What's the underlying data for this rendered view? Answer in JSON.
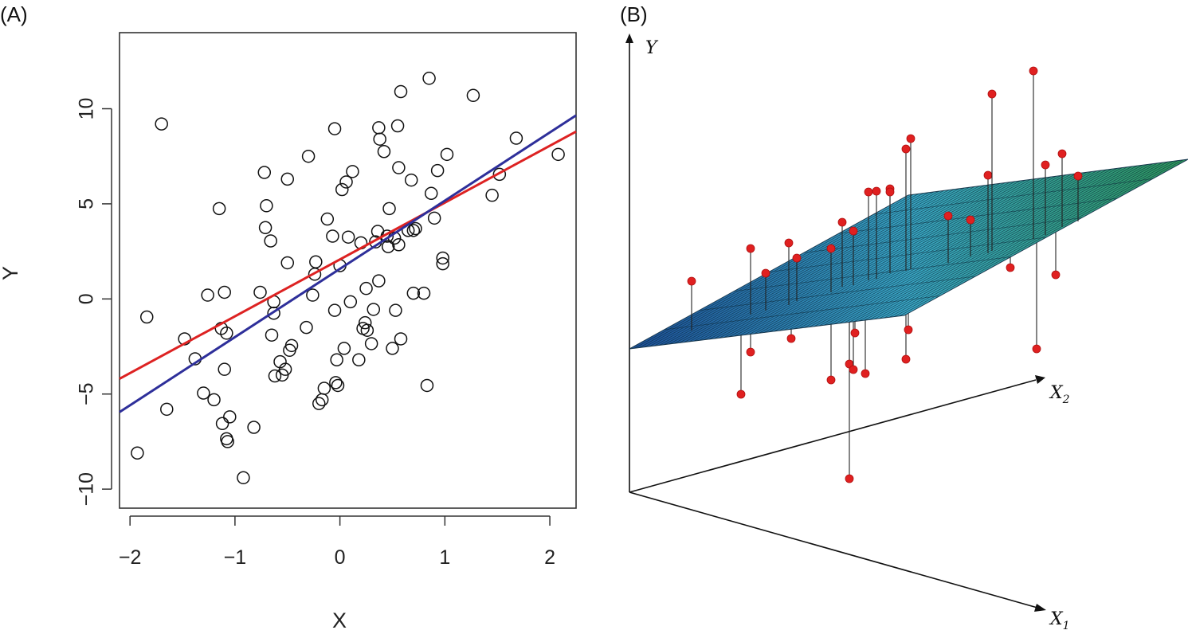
{
  "chart_data": [
    {
      "panel": "(A)",
      "type": "scatter",
      "xlabel": "X",
      "ylabel": "Y",
      "xlim": [
        -2.1,
        2.25
      ],
      "ylim": [
        -11,
        14
      ],
      "xticks": [
        -2,
        -1,
        0,
        1,
        2
      ],
      "yticks": [
        -10,
        -5,
        0,
        5,
        10
      ],
      "xtick_labels": [
        "−2",
        "−1",
        "0",
        "1",
        "2"
      ],
      "ytick_labels": [
        "−10",
        "−5",
        "0",
        "5",
        "10"
      ],
      "grid": false,
      "marker": "open-circle",
      "points": [
        [
          -1.93,
          -8.1
        ],
        [
          -1.84,
          -0.95
        ],
        [
          -1.7,
          9.2
        ],
        [
          -1.65,
          -5.8
        ],
        [
          -1.48,
          -2.1
        ],
        [
          -1.38,
          -3.15
        ],
        [
          -1.3,
          -4.95
        ],
        [
          -1.26,
          0.2
        ],
        [
          -1.2,
          -5.3
        ],
        [
          -1.15,
          4.75
        ],
        [
          -1.13,
          -1.55
        ],
        [
          -1.12,
          -6.55
        ],
        [
          -1.1,
          0.35
        ],
        [
          -1.1,
          -3.7
        ],
        [
          -1.08,
          -1.8
        ],
        [
          -1.08,
          -7.35
        ],
        [
          -1.07,
          -7.5
        ],
        [
          -1.05,
          -6.2
        ],
        [
          -0.92,
          -9.4
        ],
        [
          -0.82,
          -6.75
        ],
        [
          -0.76,
          0.35
        ],
        [
          -0.72,
          6.65
        ],
        [
          -0.71,
          3.75
        ],
        [
          -0.7,
          4.9
        ],
        [
          -0.66,
          3.05
        ],
        [
          -0.65,
          -1.9
        ],
        [
          -0.63,
          -0.15
        ],
        [
          -0.63,
          -0.75
        ],
        [
          -0.62,
          -4.05
        ],
        [
          -0.57,
          -3.3
        ],
        [
          -0.55,
          -4.0
        ],
        [
          -0.52,
          -3.7
        ],
        [
          -0.5,
          1.9
        ],
        [
          -0.5,
          6.3
        ],
        [
          -0.48,
          -2.7
        ],
        [
          -0.46,
          -2.45
        ],
        [
          -0.32,
          -1.5
        ],
        [
          -0.3,
          7.5
        ],
        [
          -0.26,
          0.2
        ],
        [
          -0.24,
          1.3
        ],
        [
          -0.23,
          1.95
        ],
        [
          -0.2,
          -5.5
        ],
        [
          -0.17,
          -5.3
        ],
        [
          -0.15,
          -4.7
        ],
        [
          -0.12,
          4.2
        ],
        [
          -0.07,
          3.3
        ],
        [
          -0.05,
          -0.6
        ],
        [
          -0.05,
          8.95
        ],
        [
          -0.04,
          -4.4
        ],
        [
          -0.03,
          -3.2
        ],
        [
          -0.02,
          -4.55
        ],
        [
          0.0,
          1.75
        ],
        [
          0.02,
          5.75
        ],
        [
          0.04,
          -2.6
        ],
        [
          0.06,
          6.15
        ],
        [
          0.08,
          3.25
        ],
        [
          0.1,
          -0.15
        ],
        [
          0.12,
          6.7
        ],
        [
          0.18,
          -3.2
        ],
        [
          0.2,
          2.95
        ],
        [
          0.22,
          -1.55
        ],
        [
          0.24,
          -1.25
        ],
        [
          0.25,
          0.55
        ],
        [
          0.26,
          -1.65
        ],
        [
          0.3,
          -2.35
        ],
        [
          0.32,
          -0.55
        ],
        [
          0.34,
          3.0
        ],
        [
          0.36,
          3.55
        ],
        [
          0.37,
          0.95
        ],
        [
          0.37,
          9.0
        ],
        [
          0.38,
          8.4
        ],
        [
          0.42,
          7.75
        ],
        [
          0.45,
          3.3
        ],
        [
          0.46,
          2.75
        ],
        [
          0.47,
          4.75
        ],
        [
          0.5,
          -2.6
        ],
        [
          0.52,
          3.2
        ],
        [
          0.53,
          -0.6
        ],
        [
          0.55,
          9.1
        ],
        [
          0.56,
          2.85
        ],
        [
          0.56,
          6.9
        ],
        [
          0.58,
          -2.1
        ],
        [
          0.58,
          10.9
        ],
        [
          0.65,
          3.6
        ],
        [
          0.68,
          6.25
        ],
        [
          0.7,
          0.3
        ],
        [
          0.7,
          3.6
        ],
        [
          0.72,
          3.7
        ],
        [
          0.8,
          0.3
        ],
        [
          0.83,
          -4.55
        ],
        [
          0.85,
          11.6
        ],
        [
          0.87,
          5.55
        ],
        [
          0.9,
          4.25
        ],
        [
          0.93,
          6.75
        ],
        [
          0.98,
          2.15
        ],
        [
          0.98,
          1.85
        ],
        [
          1.02,
          7.6
        ],
        [
          1.27,
          10.7
        ],
        [
          1.45,
          5.45
        ],
        [
          1.52,
          6.55
        ],
        [
          1.68,
          8.45
        ],
        [
          2.08,
          7.6
        ]
      ],
      "lines": [
        {
          "color": "#dd2222",
          "x": [
            -2.1,
            2.25
          ],
          "y": [
            -4.2,
            8.8
          ]
        },
        {
          "color": "#2e2f9a",
          "x": [
            -2.1,
            2.25
          ],
          "y": [
            -5.95,
            9.65
          ]
        }
      ]
    },
    {
      "panel": "(B)",
      "type": "scatter",
      "axis_labels": [
        "Y",
        "X",
        "X"
      ],
      "axis_label_subscripts": [
        "",
        "2",
        "1"
      ],
      "plane_colors": [
        "#1c4f9a",
        "#3aa9c8",
        "#2e9a5a"
      ],
      "point_color": "#e02020"
    }
  ]
}
